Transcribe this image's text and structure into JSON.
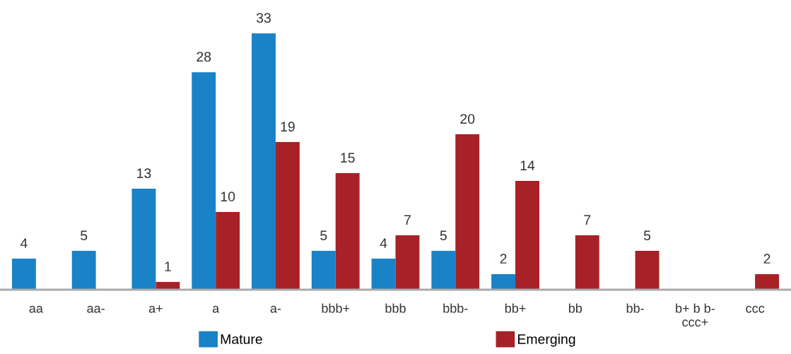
{
  "chart_data": {
    "type": "bar",
    "categories": [
      "aa",
      "aa-",
      "a+",
      "a",
      "a-",
      "bbb+",
      "bbb",
      "bbb-",
      "bb+",
      "bb",
      "bb-",
      "b+ b b-\nccc+",
      "ccc"
    ],
    "series": [
      {
        "name": "Mature",
        "color": "#1a82c6",
        "values": [
          4,
          5,
          13,
          28,
          33,
          5,
          4,
          5,
          2,
          null,
          null,
          null,
          null
        ]
      },
      {
        "name": "Emerging",
        "color": "#a82126",
        "values": [
          null,
          null,
          1,
          10,
          19,
          15,
          7,
          20,
          14,
          7,
          5,
          null,
          2
        ]
      }
    ],
    "data_labels": true,
    "legend": "bottom",
    "grid": false,
    "tick_labels": "x"
  }
}
